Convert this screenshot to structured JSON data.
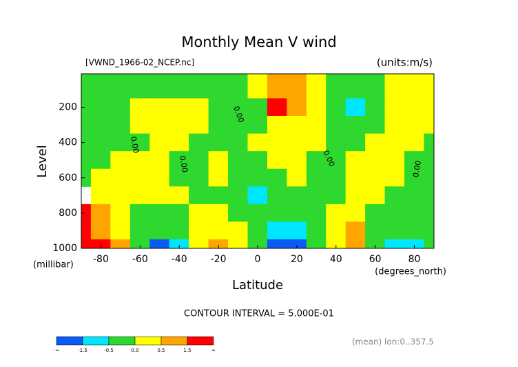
{
  "chart_data": {
    "type": "contourf",
    "title": "Monthly Mean V wind",
    "file_label": "[VWND_1966-02_NCEP.nc]",
    "units_label": "(units:m/s)",
    "y_label": "Level",
    "y_units": "(millibar)",
    "x_label": "Latitude",
    "x_units": "(degrees_north)",
    "contour_interval": "CONTOUR INTERVAL = 5.000E-01",
    "mean_note": "(mean) lon:0..357.5",
    "contour_label": "0.00",
    "x": [
      -90,
      -80,
      -70,
      -60,
      -50,
      -40,
      -30,
      -20,
      -10,
      0,
      10,
      20,
      30,
      40,
      50,
      60,
      70,
      80,
      90
    ],
    "y": [
      100,
      200,
      300,
      400,
      500,
      600,
      700,
      800,
      900,
      1000
    ],
    "z": [
      [
        -0.2,
        -0.2,
        -0.2,
        -0.2,
        -0.2,
        -0.2,
        -0.2,
        -0.2,
        -0.2,
        0.3,
        1,
        1,
        0.3,
        -0.2,
        -0.2,
        -0.2,
        0.3,
        0.3,
        0.3
      ],
      [
        -0.2,
        -0.2,
        -0.2,
        0.3,
        0.3,
        0.3,
        0.3,
        -0.2,
        -0.2,
        -0.2,
        2,
        1,
        0.3,
        -0.2,
        -1,
        -0.2,
        0.3,
        0.3,
        0.3
      ],
      [
        -0.2,
        -0.2,
        -0.2,
        0.3,
        0.3,
        0.3,
        0.3,
        -0.2,
        -0.2,
        -0.2,
        0.3,
        0.3,
        0.3,
        -0.2,
        -0.2,
        -0.2,
        0.3,
        0.3,
        0.3
      ],
      [
        -0.2,
        -0.2,
        -0.2,
        -0.2,
        0.3,
        0.3,
        -0.2,
        -0.2,
        -0.2,
        0.3,
        0.3,
        0.3,
        0.3,
        -0.2,
        -0.2,
        0.3,
        0.3,
        0.3,
        -0.2
      ],
      [
        -0.2,
        -0.2,
        0.3,
        0.3,
        0.3,
        -0.2,
        -0.2,
        0.3,
        -0.2,
        -0.2,
        0.3,
        0.3,
        -0.2,
        -0.2,
        0.3,
        0.3,
        0.3,
        -0.2,
        -0.2
      ],
      [
        -0.2,
        0.3,
        0.3,
        0.3,
        0.3,
        -0.2,
        -0.2,
        0.3,
        -0.2,
        -0.2,
        -0.2,
        0.3,
        -0.2,
        -0.2,
        0.3,
        0.3,
        0.3,
        -0.2,
        -0.2
      ],
      [
        null,
        0.3,
        0.3,
        0.3,
        0.3,
        0.3,
        -0.2,
        -0.2,
        -0.2,
        -1,
        -0.2,
        -0.2,
        -0.2,
        -0.2,
        0.3,
        0.3,
        -0.2,
        -0.2,
        -0.2
      ],
      [
        2,
        1,
        0.3,
        -0.2,
        -0.2,
        -0.2,
        0.3,
        0.3,
        -0.2,
        -0.2,
        -0.2,
        -0.2,
        -0.2,
        0.3,
        0.3,
        -0.2,
        -0.2,
        -0.2,
        -0.2
      ],
      [
        2,
        1,
        0.3,
        -0.2,
        -0.2,
        -0.2,
        0.3,
        0.3,
        0.3,
        -0.2,
        -1,
        -1,
        -0.2,
        0.3,
        1,
        -0.2,
        -0.2,
        -0.2,
        -0.2
      ],
      [
        2,
        2,
        1,
        -0.2,
        -2,
        -1,
        0.3,
        1,
        0.3,
        -0.2,
        -2,
        -2,
        -0.2,
        0.3,
        1,
        -0.2,
        -1,
        -1,
        -0.2
      ]
    ],
    "xlim": [
      -90,
      90
    ],
    "ylim": [
      1000,
      10
    ],
    "xticks": [
      -80,
      -60,
      -40,
      -20,
      0,
      20,
      40,
      60,
      80
    ],
    "yticks": [
      200,
      400,
      600,
      800,
      1000
    ],
    "colorbar": {
      "edges": [
        "-∞",
        -1.5,
        -0.5,
        {
          "value": 0,
          "label": "0.0"
        },
        0.5,
        1.5,
        "∞"
      ],
      "colors": [
        "#0a5af5",
        "#00e6ff",
        "#2ed82e",
        "#ffff00",
        "#ffa500",
        "#ff0000"
      ]
    }
  }
}
